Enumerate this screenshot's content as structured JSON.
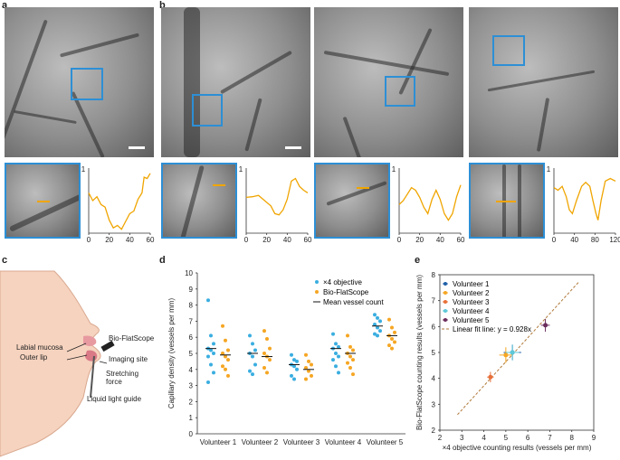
{
  "panel_labels": {
    "a": "a",
    "b": "b",
    "c": "c",
    "d": "d",
    "e": "e"
  },
  "profiles": [
    {
      "xticks": [
        "0",
        "20",
        "40",
        "60"
      ],
      "ytop": "1",
      "points": [
        [
          0,
          0.62
        ],
        [
          4,
          0.5
        ],
        [
          8,
          0.56
        ],
        [
          12,
          0.44
        ],
        [
          16,
          0.4
        ],
        [
          20,
          0.2
        ],
        [
          24,
          0.08
        ],
        [
          28,
          0.12
        ],
        [
          32,
          0.06
        ],
        [
          36,
          0.18
        ],
        [
          40,
          0.3
        ],
        [
          44,
          0.34
        ],
        [
          48,
          0.52
        ],
        [
          52,
          0.62
        ],
        [
          54,
          0.86
        ],
        [
          57,
          0.84
        ],
        [
          60,
          0.92
        ]
      ],
      "xmax": 60
    },
    {
      "xticks": [
        "0",
        "20",
        "40",
        "60"
      ],
      "ytop": "1",
      "points": [
        [
          0,
          0.55
        ],
        [
          6,
          0.56
        ],
        [
          12,
          0.58
        ],
        [
          18,
          0.5
        ],
        [
          24,
          0.42
        ],
        [
          28,
          0.3
        ],
        [
          32,
          0.28
        ],
        [
          36,
          0.36
        ],
        [
          40,
          0.52
        ],
        [
          44,
          0.8
        ],
        [
          48,
          0.84
        ],
        [
          52,
          0.72
        ],
        [
          56,
          0.66
        ],
        [
          60,
          0.62
        ]
      ],
      "xmax": 60
    },
    {
      "xticks": [
        "0",
        "20",
        "40",
        "60"
      ],
      "ytop": "1",
      "points": [
        [
          0,
          0.44
        ],
        [
          4,
          0.5
        ],
        [
          8,
          0.6
        ],
        [
          12,
          0.7
        ],
        [
          16,
          0.66
        ],
        [
          20,
          0.55
        ],
        [
          24,
          0.4
        ],
        [
          28,
          0.3
        ],
        [
          32,
          0.52
        ],
        [
          36,
          0.66
        ],
        [
          40,
          0.52
        ],
        [
          44,
          0.3
        ],
        [
          48,
          0.2
        ],
        [
          52,
          0.3
        ],
        [
          56,
          0.56
        ],
        [
          60,
          0.74
        ]
      ],
      "xmax": 60
    },
    {
      "xticks": [
        "0",
        "40",
        "80",
        "120"
      ],
      "ytop": "1",
      "points": [
        [
          0,
          0.7
        ],
        [
          8,
          0.66
        ],
        [
          16,
          0.72
        ],
        [
          24,
          0.56
        ],
        [
          30,
          0.36
        ],
        [
          36,
          0.3
        ],
        [
          44,
          0.5
        ],
        [
          54,
          0.72
        ],
        [
          62,
          0.78
        ],
        [
          70,
          0.72
        ],
        [
          76,
          0.5
        ],
        [
          82,
          0.3
        ],
        [
          86,
          0.2
        ],
        [
          92,
          0.5
        ],
        [
          100,
          0.8
        ],
        [
          110,
          0.84
        ],
        [
          120,
          0.8
        ]
      ],
      "xmax": 120
    }
  ],
  "panel_c": {
    "labels": {
      "bioflatscope": "Bio-FlatScope",
      "labial_mucosa": "Labial mucosa",
      "outer_lip": "Outer lip",
      "imaging_site": "Imaging site",
      "stretching_force": "Stretching\nforce",
      "liquid_light_guide": "Liquid light guide"
    }
  },
  "chart_data": [
    {
      "type": "scatter",
      "panel": "d",
      "ylabel": "Capillary density (vessels per mm)",
      "ylim": [
        0,
        10
      ],
      "yticks": [
        "0",
        "1",
        "2",
        "3",
        "4",
        "5",
        "6",
        "7",
        "8",
        "9",
        "10"
      ],
      "categories": [
        "Volunteer 1",
        "Volunteer 2",
        "Volunteer 3",
        "Volunteer 4",
        "Volunteer 5"
      ],
      "legend": [
        "×4 objective",
        "Bio-FlatScope",
        "Mean vessel count"
      ],
      "colors": {
        "objective": "#3aaee0",
        "bioflatscope": "#f5a623",
        "mean": "#111111"
      },
      "series": [
        {
          "name": "×4 objective",
          "values": [
            [
              8.3,
              6.1,
              5.6,
              5.3,
              5.2,
              5.0,
              4.8,
              4.3,
              3.8,
              3.2
            ],
            [
              6.1,
              5.6,
              5.2,
              5.0,
              4.8,
              4.3,
              3.9,
              3.7
            ],
            [
              4.9,
              4.6,
              4.5,
              4.3,
              4.2,
              4.0,
              3.6,
              3.4
            ],
            [
              6.2,
              5.6,
              5.4,
              5.3,
              5.0,
              4.8,
              4.6,
              4.2,
              3.8
            ],
            [
              7.4,
              7.2,
              7.0,
              6.8,
              6.6,
              6.4,
              6.2,
              6.1
            ]
          ],
          "means": [
            5.3,
            5.0,
            4.3,
            5.3,
            6.7
          ]
        },
        {
          "name": "Bio-FlatScope",
          "values": [
            [
              6.7,
              5.8,
              5.2,
              5.0,
              4.8,
              4.6,
              4.2,
              4.0,
              3.6
            ],
            [
              6.4,
              5.9,
              5.3,
              5.0,
              4.8,
              4.6,
              4.1,
              3.8
            ],
            [
              4.9,
              4.5,
              4.3,
              4.1,
              3.9,
              3.6,
              3.4
            ],
            [
              6.1,
              5.4,
              5.2,
              5.0,
              4.8,
              4.6,
              4.4,
              4.1,
              3.7
            ],
            [
              7.1,
              6.6,
              6.3,
              6.1,
              5.9,
              5.7,
              5.5,
              5.3
            ]
          ],
          "means": [
            4.9,
            4.8,
            4.0,
            5.0,
            6.1
          ]
        }
      ]
    },
    {
      "type": "scatter",
      "panel": "e",
      "xlabel": "×4 objective counting results (vessels per mm)",
      "ylabel": "Bio-FlatScope counting results (vessels per mm)",
      "xlim": [
        2,
        9
      ],
      "ylim": [
        2,
        8
      ],
      "xticks": [
        "2",
        "3",
        "4",
        "5",
        "6",
        "7",
        "8",
        "9"
      ],
      "yticks": [
        "2",
        "3",
        "4",
        "5",
        "6",
        "7",
        "8"
      ],
      "legend_fit": "Linear fit line: y = 0.928x",
      "fit_slope": 0.928,
      "fit_range": [
        2.8,
        8.3
      ],
      "series": [
        {
          "name": "Volunteer 1",
          "color": "#1f5fa8",
          "x": 5.3,
          "y": 5.0,
          "xerr": 0.4,
          "yerr": 0.3
        },
        {
          "name": "Volunteer 2",
          "color": "#f5a623",
          "x": 5.0,
          "y": 4.9,
          "xerr": 0.3,
          "yerr": 0.3
        },
        {
          "name": "Volunteer 3",
          "color": "#e8703a",
          "x": 4.3,
          "y": 4.05,
          "xerr": 0.15,
          "yerr": 0.2
        },
        {
          "name": "Volunteer 4",
          "color": "#5ec8d8",
          "x": 5.3,
          "y": 5.0,
          "xerr": 0.3,
          "yerr": 0.3
        },
        {
          "name": "Volunteer 5",
          "color": "#6b2d5c",
          "x": 6.8,
          "y": 6.05,
          "xerr": 0.2,
          "yerr": 0.25
        }
      ]
    }
  ]
}
